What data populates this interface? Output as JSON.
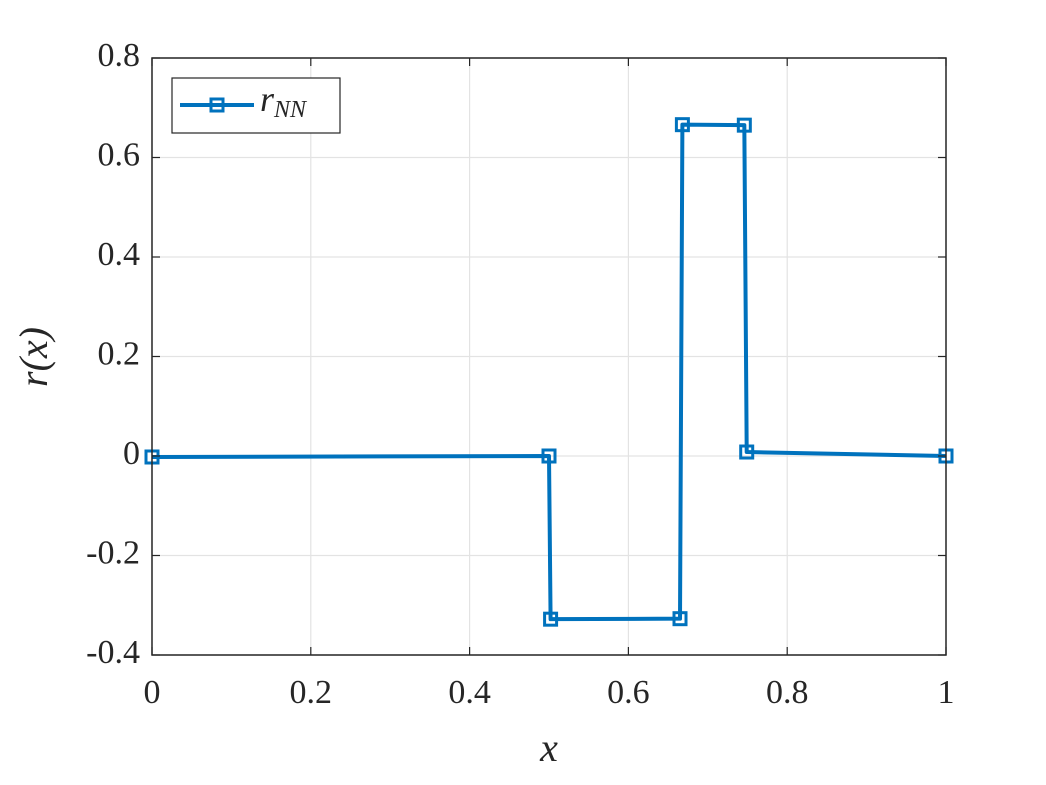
{
  "chart_data": {
    "type": "line",
    "x_label": "x",
    "y_label": "r(x)",
    "x": [
      0,
      0.5,
      0.502,
      0.665,
      0.668,
      0.746,
      0.749,
      1
    ],
    "series": [
      {
        "name": "r_NN",
        "color": "#0072bd",
        "marker": "square",
        "values": [
          -0.002,
          0.0,
          -0.328,
          -0.327,
          0.666,
          0.665,
          0.008,
          0.0
        ]
      }
    ],
    "xlim": [
      0,
      1
    ],
    "xticks": [
      0,
      0.2,
      0.4,
      0.6,
      0.8,
      1
    ],
    "ylim": [
      -0.4,
      0.8
    ],
    "yticks": [
      -0.4,
      -0.2,
      0,
      0.2,
      0.4,
      0.6,
      0.8
    ],
    "grid": true,
    "legend_position": "northwest"
  }
}
